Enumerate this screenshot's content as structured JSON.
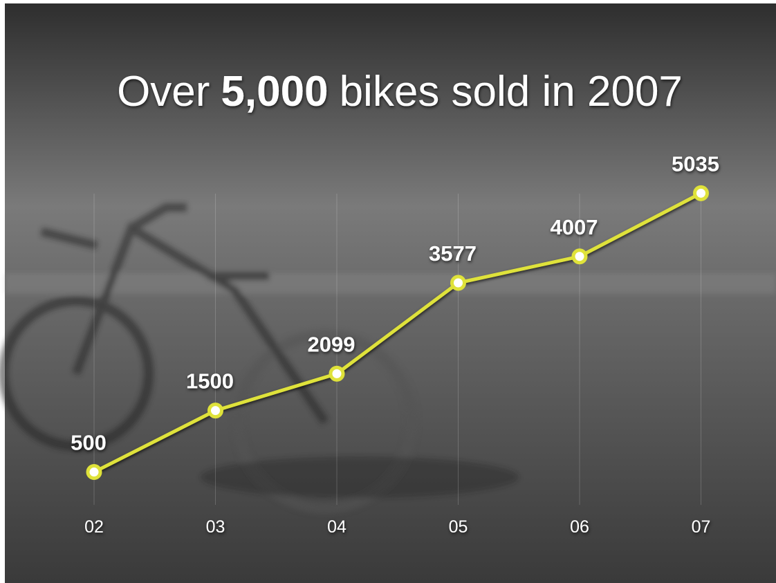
{
  "chart_data": {
    "type": "line",
    "title": [
      "Over",
      "5,000",
      "bikes sold in 2007"
    ],
    "categories": [
      "02",
      "03",
      "04",
      "05",
      "06",
      "07"
    ],
    "values": [
      500,
      1500,
      2099,
      3577,
      4007,
      5035
    ],
    "color": "#dfe23a",
    "grid": true
  }
}
